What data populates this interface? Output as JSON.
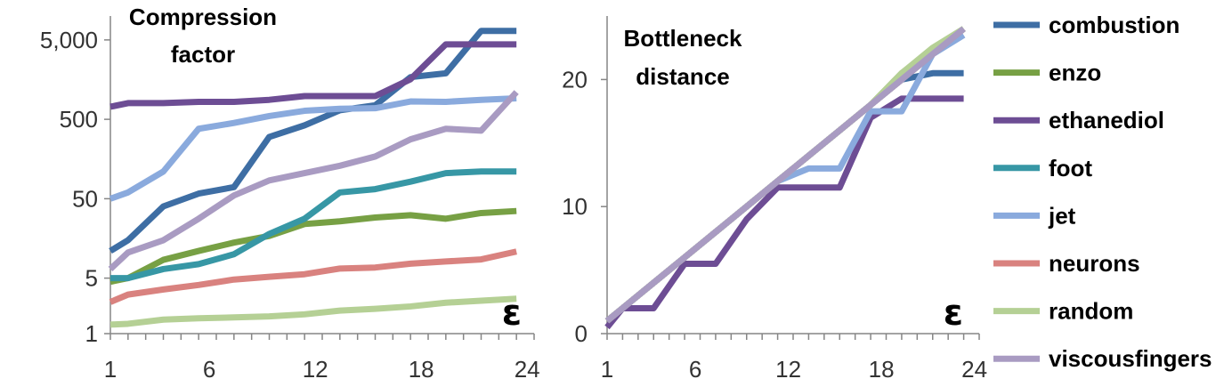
{
  "chart_data": [
    {
      "type": "line",
      "title": [
        "Compression",
        "factor"
      ],
      "xlabel": "ε",
      "ylabel": "",
      "yscale": "log",
      "ylim": [
        1,
        10000
      ],
      "yticks": [
        1,
        5,
        50,
        500,
        5000
      ],
      "ytick_labels": [
        "1",
        "5",
        "50",
        "500",
        "5,000"
      ],
      "xticks": [
        1,
        6,
        12,
        18,
        24
      ],
      "xtick_labels": [
        "1",
        "6",
        "12",
        "18",
        "24"
      ],
      "grid": false,
      "x": [
        1,
        2,
        4,
        6,
        8,
        10,
        12,
        14,
        16,
        18,
        20,
        22,
        24
      ],
      "series": [
        {
          "name": "combustion",
          "color": "#3e6ea4",
          "values": [
            11,
            15,
            40,
            58,
            70,
            300,
            420,
            650,
            750,
            1700,
            1900,
            6500,
            6500
          ]
        },
        {
          "name": "enzo",
          "color": "#77a044",
          "values": [
            4.5,
            5,
            8.5,
            11,
            14,
            17,
            24,
            26,
            29,
            31,
            28,
            33,
            35
          ]
        },
        {
          "name": "ethanediol",
          "color": "#6d4d94",
          "values": [
            720,
            800,
            800,
            830,
            830,
            880,
            980,
            980,
            980,
            1600,
            4400,
            4400,
            4400
          ]
        },
        {
          "name": "foot",
          "color": "#3797a5",
          "values": [
            5,
            5,
            6.5,
            7.5,
            10,
            18,
            28,
            60,
            66,
            82,
            105,
            110,
            110
          ]
        },
        {
          "name": "jet",
          "color": "#8aaadd",
          "values": [
            50,
            60,
            110,
            380,
            450,
            550,
            640,
            680,
            690,
            840,
            830,
            880,
            920
          ]
        },
        {
          "name": "neurons",
          "color": "#d9827f",
          "values": [
            2.5,
            3.1,
            3.6,
            4.1,
            4.8,
            5.2,
            5.6,
            6.6,
            6.8,
            7.6,
            8.1,
            8.6,
            10.8
          ]
        },
        {
          "name": "random",
          "color": "#b5d095",
          "values": [
            1.3,
            1.33,
            1.5,
            1.56,
            1.6,
            1.65,
            1.75,
            1.95,
            2.05,
            2.2,
            2.45,
            2.6,
            2.75
          ]
        },
        {
          "name": "viscousfingers",
          "color": "#a99bc2",
          "values": [
            6.5,
            10.5,
            15,
            28,
            55,
            85,
            105,
            130,
            170,
            280,
            380,
            360,
            1100
          ]
        }
      ]
    },
    {
      "type": "line",
      "title": [
        "Bottleneck",
        "distance"
      ],
      "xlabel": "ε",
      "ylabel": "",
      "ylim": [
        0,
        25
      ],
      "yticks": [
        0,
        10,
        20
      ],
      "ytick_labels": [
        "0",
        "10",
        "20"
      ],
      "xticks": [
        1,
        6,
        12,
        18,
        24
      ],
      "xtick_labels": [
        "1",
        "6",
        "12",
        "18",
        "24"
      ],
      "grid": false,
      "x": [
        1,
        2,
        4,
        6,
        8,
        10,
        12,
        14,
        16,
        18,
        20,
        22,
        24
      ],
      "series": [
        {
          "name": "combustion",
          "color": "#3e6ea4",
          "values": [
            1,
            2,
            4,
            6,
            8,
            10,
            12,
            14,
            16,
            18,
            20,
            20.5,
            20.5
          ]
        },
        {
          "name": "enzo",
          "color": "#77a044",
          "values": [
            1,
            2,
            4,
            6,
            8,
            10,
            12,
            14,
            16,
            18,
            20.5,
            22,
            24
          ]
        },
        {
          "name": "ethanediol",
          "color": "#6d4d94",
          "values": [
            0.5,
            2,
            2,
            5.5,
            5.5,
            9,
            11.5,
            11.5,
            11.5,
            17,
            18.5,
            18.5,
            18.5
          ]
        },
        {
          "name": "foot",
          "color": "#3797a5",
          "values": [
            1,
            2,
            4,
            6,
            8,
            10,
            12,
            14,
            16,
            18,
            20,
            22,
            24
          ]
        },
        {
          "name": "jet",
          "color": "#8aaadd",
          "values": [
            1,
            2,
            4,
            6,
            8,
            10,
            12,
            13,
            13,
            17.5,
            17.5,
            22,
            23.5
          ]
        },
        {
          "name": "neurons",
          "color": "#d9827f",
          "values": [
            1,
            2,
            4,
            6,
            8,
            10,
            12,
            14,
            16,
            18,
            20,
            22,
            24
          ]
        },
        {
          "name": "random",
          "color": "#b5d095",
          "values": [
            1,
            2,
            4,
            6,
            8,
            10,
            12,
            14,
            16,
            18,
            20.5,
            22.5,
            24
          ]
        },
        {
          "name": "viscousfingers",
          "color": "#a99bc2",
          "values": [
            1,
            2,
            4,
            6,
            8,
            10,
            12,
            14,
            16,
            18,
            20,
            22,
            24
          ]
        }
      ]
    }
  ],
  "legend": {
    "position": "right",
    "items": [
      "combustion",
      "enzo",
      "ethanediol",
      "foot",
      "jet",
      "neurons",
      "random",
      "viscousfingers"
    ]
  }
}
